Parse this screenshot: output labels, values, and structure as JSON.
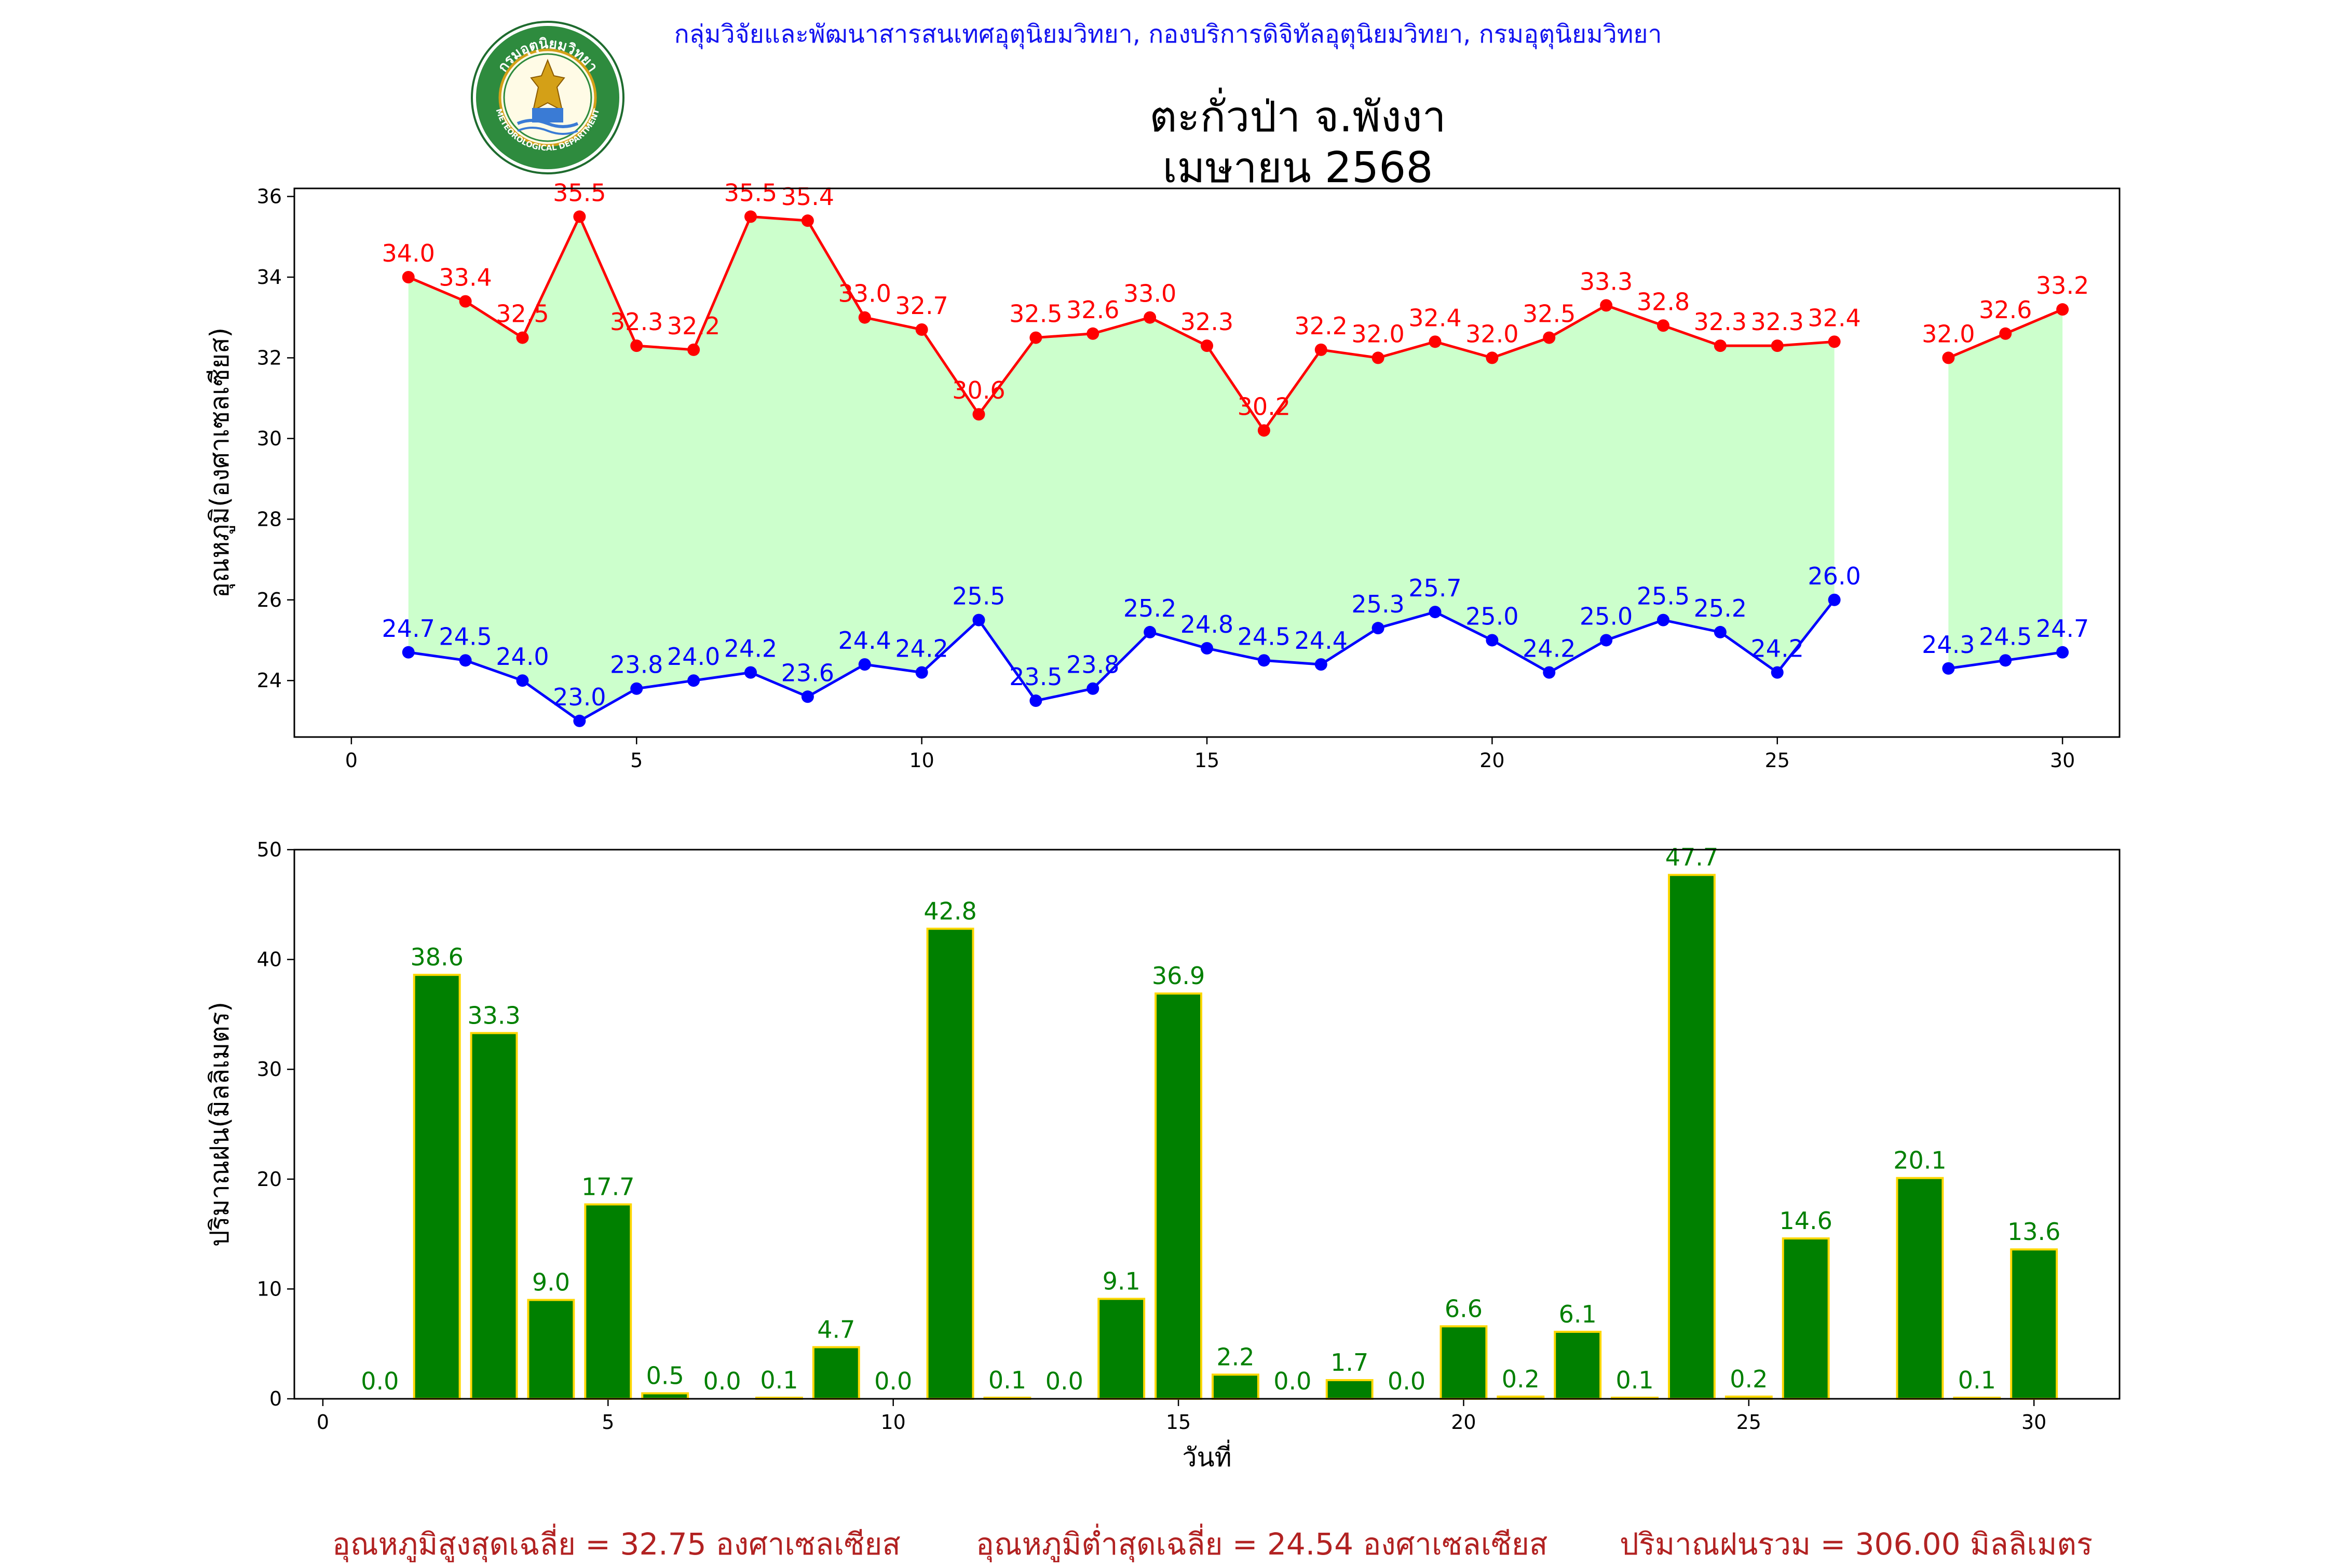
{
  "header": {
    "agency": "กลุ่มวิจัยและพัฒนาสารสนเทศอุตุนิยมวิทยา, กองบริการดิจิทัลอุตุนิยมวิทยา, กรมอุตุนิยมวิทยา",
    "title_line1": "ตะกั่วป่า จ.พังงา",
    "title_line2": "เมษายน 2568",
    "logo_text_top": "กรมอุตุนิยมวิทยา",
    "logo_text_bottom": "METEOROLOGICAL DEPARTMENT"
  },
  "footer": {
    "avg_max": "อุณหภูมิสูงสุดเฉลี่ย = 32.75 องศาเซลเซียส",
    "avg_min": "อุณหภูมิต่ำสุดเฉลี่ย = 24.54 องศาเซลเซียส",
    "total_rain": "ปริมาณฝนรวม = 306.00 มิลลิเมตร"
  },
  "colors": {
    "max_line": "#ff0000",
    "min_line": "#0000ff",
    "fill": "#ccffcc",
    "bar_fill": "#008000",
    "bar_edge": "#ffd700",
    "bar_label": "#008000",
    "footer_text": "#b22222",
    "agency_text": "#1414f0"
  },
  "chart_data": [
    {
      "type": "line",
      "ylabel": "อุณหภูมิ(องศาเซลเซียส)",
      "xlim": [
        -1,
        31
      ],
      "ylim": [
        22.6,
        36.2
      ],
      "xticks": [
        0,
        5,
        10,
        15,
        20,
        25,
        30
      ],
      "yticks": [
        24,
        26,
        28,
        30,
        32,
        34,
        36
      ],
      "x": [
        1,
        2,
        3,
        4,
        5,
        6,
        7,
        8,
        9,
        10,
        11,
        12,
        13,
        14,
        15,
        16,
        17,
        18,
        19,
        20,
        21,
        22,
        23,
        24,
        25,
        26,
        28,
        29,
        30
      ],
      "series": [
        {
          "key": "max",
          "values": [
            34.0,
            33.4,
            32.5,
            35.5,
            32.3,
            32.2,
            35.5,
            35.4,
            33.0,
            32.7,
            30.6,
            32.5,
            32.6,
            33.0,
            32.3,
            30.2,
            32.2,
            32.0,
            32.4,
            32.0,
            32.5,
            33.3,
            32.8,
            32.3,
            32.3,
            32.4,
            32.0,
            32.6,
            33.2
          ]
        },
        {
          "key": "min",
          "values": [
            24.7,
            24.5,
            24.0,
            23.0,
            23.8,
            24.0,
            24.2,
            23.6,
            24.4,
            24.2,
            25.5,
            23.5,
            23.8,
            25.2,
            24.8,
            24.5,
            24.4,
            25.3,
            25.7,
            25.0,
            24.2,
            25.0,
            25.5,
            25.2,
            24.2,
            26.0,
            24.3,
            24.5,
            24.7
          ]
        }
      ],
      "grid": false
    },
    {
      "type": "bar",
      "xlabel": "วันที่",
      "ylabel": "ปริมาณฝน(มิลลิเมตร)",
      "xlim": [
        -0.5,
        31.5
      ],
      "ylim": [
        0,
        50
      ],
      "xticks": [
        0,
        5,
        10,
        15,
        20,
        25,
        30
      ],
      "yticks": [
        0,
        10,
        20,
        30,
        40,
        50
      ],
      "x": [
        1,
        2,
        3,
        4,
        5,
        6,
        7,
        8,
        9,
        10,
        11,
        12,
        13,
        14,
        15,
        16,
        17,
        18,
        19,
        20,
        21,
        22,
        23,
        24,
        25,
        26,
        28,
        29,
        30
      ],
      "values": [
        0.0,
        38.6,
        33.3,
        9.0,
        17.7,
        0.5,
        0.0,
        0.1,
        4.7,
        0.0,
        42.8,
        0.1,
        0.0,
        9.1,
        36.9,
        2.2,
        0.0,
        1.7,
        0.0,
        6.6,
        0.2,
        6.1,
        0.1,
        47.7,
        0.2,
        14.6,
        20.1,
        0.1,
        13.6
      ],
      "grid": false
    }
  ]
}
